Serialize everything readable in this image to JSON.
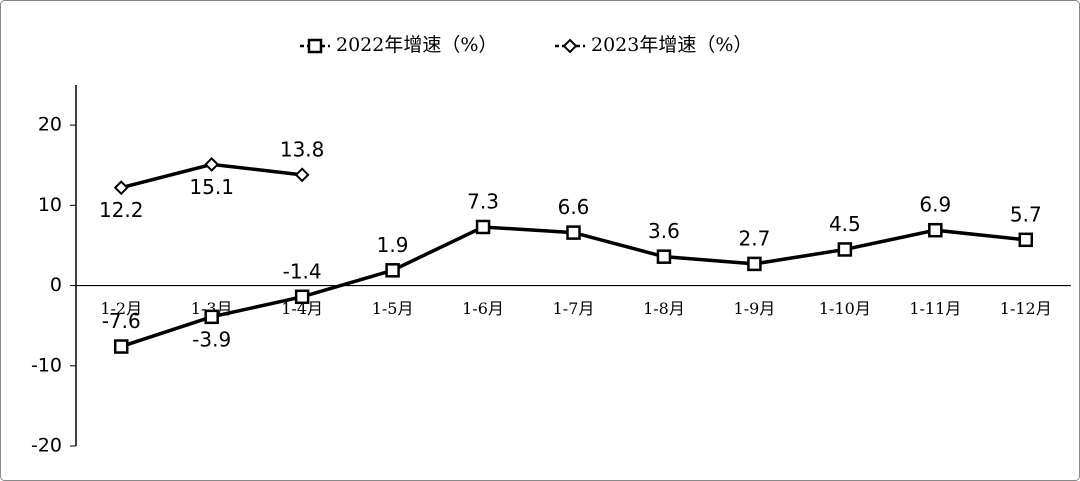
{
  "chart_data": {
    "type": "line",
    "categories": [
      "1-2月",
      "1-3月",
      "1-4月",
      "1-5月",
      "1-6月",
      "1-7月",
      "1-8月",
      "1-9月",
      "1-10月",
      "1-11月",
      "1-12月"
    ],
    "series": [
      {
        "name": "2022年增速（%）",
        "color": "#000000",
        "marker": "square",
        "values": [
          -7.6,
          -3.9,
          -1.4,
          1.9,
          7.3,
          6.6,
          3.6,
          2.7,
          4.5,
          6.9,
          5.7
        ]
      },
      {
        "name": "2023年增速（%）",
        "color": "#000000",
        "marker": "diamond",
        "values": [
          12.2,
          15.1,
          13.8,
          null,
          null,
          null,
          null,
          null,
          null,
          null,
          null
        ]
      }
    ],
    "ylim": [
      -20,
      25
    ],
    "yticks": [
      -20,
      -10,
      0,
      10,
      20
    ],
    "grid": false,
    "legend": "top"
  }
}
